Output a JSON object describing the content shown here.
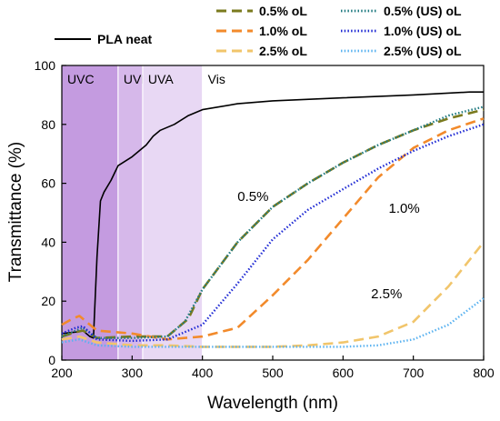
{
  "chart_data": {
    "type": "line",
    "xlabel": "Wavelength (nm)",
    "ylabel": "Transmittance (%)",
    "xlim": [
      200,
      800
    ],
    "ylim": [
      0,
      100
    ],
    "xticks": [
      200,
      300,
      400,
      500,
      600,
      700,
      800
    ],
    "yticks": [
      0,
      20,
      40,
      60,
      80,
      100
    ],
    "regions": [
      {
        "label": "UVC",
        "from": 200,
        "to": 280,
        "color": "#c49be0"
      },
      {
        "label": "UVB",
        "from": 280,
        "to": 315,
        "color": "#d6b8ea"
      },
      {
        "label": "UVA",
        "from": 315,
        "to": 400,
        "color": "#e8d8f4"
      },
      {
        "label": "Vis",
        "from": 400,
        "to": 800,
        "color": "#ffffff"
      }
    ],
    "annotations": [
      {
        "text": "0.5%",
        "x": 472,
        "y": 54
      },
      {
        "text": "1.0%",
        "x": 687,
        "y": 50
      },
      {
        "text": "2.5%",
        "x": 662,
        "y": 21
      }
    ],
    "legend_position": "top",
    "series": [
      {
        "name": "PLA neat",
        "color": "#000000",
        "dash": "solid",
        "x": [
          200,
          220,
          230,
          240,
          245,
          250,
          255,
          260,
          270,
          280,
          300,
          320,
          330,
          340,
          360,
          380,
          400,
          450,
          500,
          600,
          700,
          780,
          800
        ],
        "y": [
          9,
          9.5,
          10,
          8,
          7.5,
          35,
          54,
          57,
          61,
          66,
          69,
          73,
          76,
          78,
          80,
          83,
          85,
          87,
          88,
          89,
          90,
          91,
          91
        ]
      },
      {
        "name": "0.5% oL",
        "color": "#7a7a1e",
        "dash": "dashed",
        "x": [
          200,
          220,
          230,
          250,
          300,
          350,
          380,
          400,
          450,
          500,
          550,
          600,
          650,
          700,
          750,
          800
        ],
        "y": [
          8,
          9.5,
          10,
          7.5,
          8,
          8,
          14,
          24,
          40,
          52,
          60,
          67,
          73,
          78,
          82,
          85
        ]
      },
      {
        "name": "1.0% oL",
        "color": "#f28a2b",
        "dash": "dashed",
        "x": [
          200,
          215,
          225,
          250,
          300,
          350,
          400,
          450,
          500,
          550,
          600,
          650,
          700,
          750,
          800
        ],
        "y": [
          12,
          14,
          15,
          10,
          9,
          7,
          8,
          11,
          22,
          34,
          48,
          62,
          72,
          78,
          82
        ]
      },
      {
        "name": "2.5% oL",
        "color": "#f1c56b",
        "dash": "dashed",
        "x": [
          200,
          225,
          250,
          300,
          350,
          400,
          450,
          500,
          550,
          600,
          650,
          700,
          750,
          800
        ],
        "y": [
          7,
          8,
          6,
          5,
          5,
          4.5,
          4.5,
          4.5,
          5,
          6,
          8,
          13,
          25,
          40
        ]
      },
      {
        "name": "0.5% (US) oL",
        "color": "#1f7a80",
        "dash": "dotted",
        "x": [
          200,
          220,
          230,
          250,
          300,
          350,
          375,
          400,
          450,
          500,
          550,
          600,
          650,
          700,
          750,
          800
        ],
        "y": [
          8,
          10,
          11,
          7.5,
          7.5,
          8,
          13,
          24,
          40,
          52,
          60,
          67,
          73,
          78,
          83,
          86
        ]
      },
      {
        "name": "1.0% (US) oL",
        "color": "#1f2ad4",
        "dash": "dotted",
        "x": [
          200,
          220,
          230,
          250,
          300,
          350,
          400,
          450,
          500,
          550,
          600,
          650,
          700,
          750,
          800
        ],
        "y": [
          9,
          11,
          11.5,
          7,
          6.5,
          7,
          12,
          26,
          41,
          51,
          58,
          65,
          71,
          76,
          80
        ]
      },
      {
        "name": "2.5% (US) oL",
        "color": "#5ab2f0",
        "dash": "dotted",
        "x": [
          200,
          225,
          250,
          300,
          350,
          400,
          450,
          500,
          550,
          600,
          650,
          700,
          750,
          800
        ],
        "y": [
          6,
          7,
          5,
          4.5,
          4.5,
          4.5,
          4.5,
          4.5,
          4.5,
          4.5,
          5,
          7,
          12,
          21
        ]
      }
    ]
  }
}
